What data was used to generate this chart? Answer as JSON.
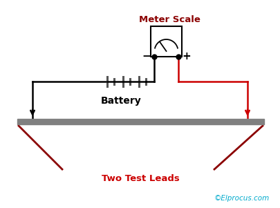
{
  "bg_color": "#ffffff",
  "meter_scale_label": "Meter Scale",
  "meter_scale_color": "#8b0000",
  "battery_label": "Battery",
  "battery_color": "#000000",
  "two_test_leads_label": "Two Test Leads",
  "two_test_leads_color": "#cc0000",
  "copyright_label": "©Elprocus.com",
  "copyright_color": "#00aacc",
  "wire_black": "#000000",
  "wire_red": "#cc0000",
  "meter_box_color": "#000000",
  "bar_color": "#808080",
  "lead_color": "#8b0000",
  "plus_color": "#000000",
  "minus_color": "#000000",
  "circuit_wire_color": "#555555"
}
